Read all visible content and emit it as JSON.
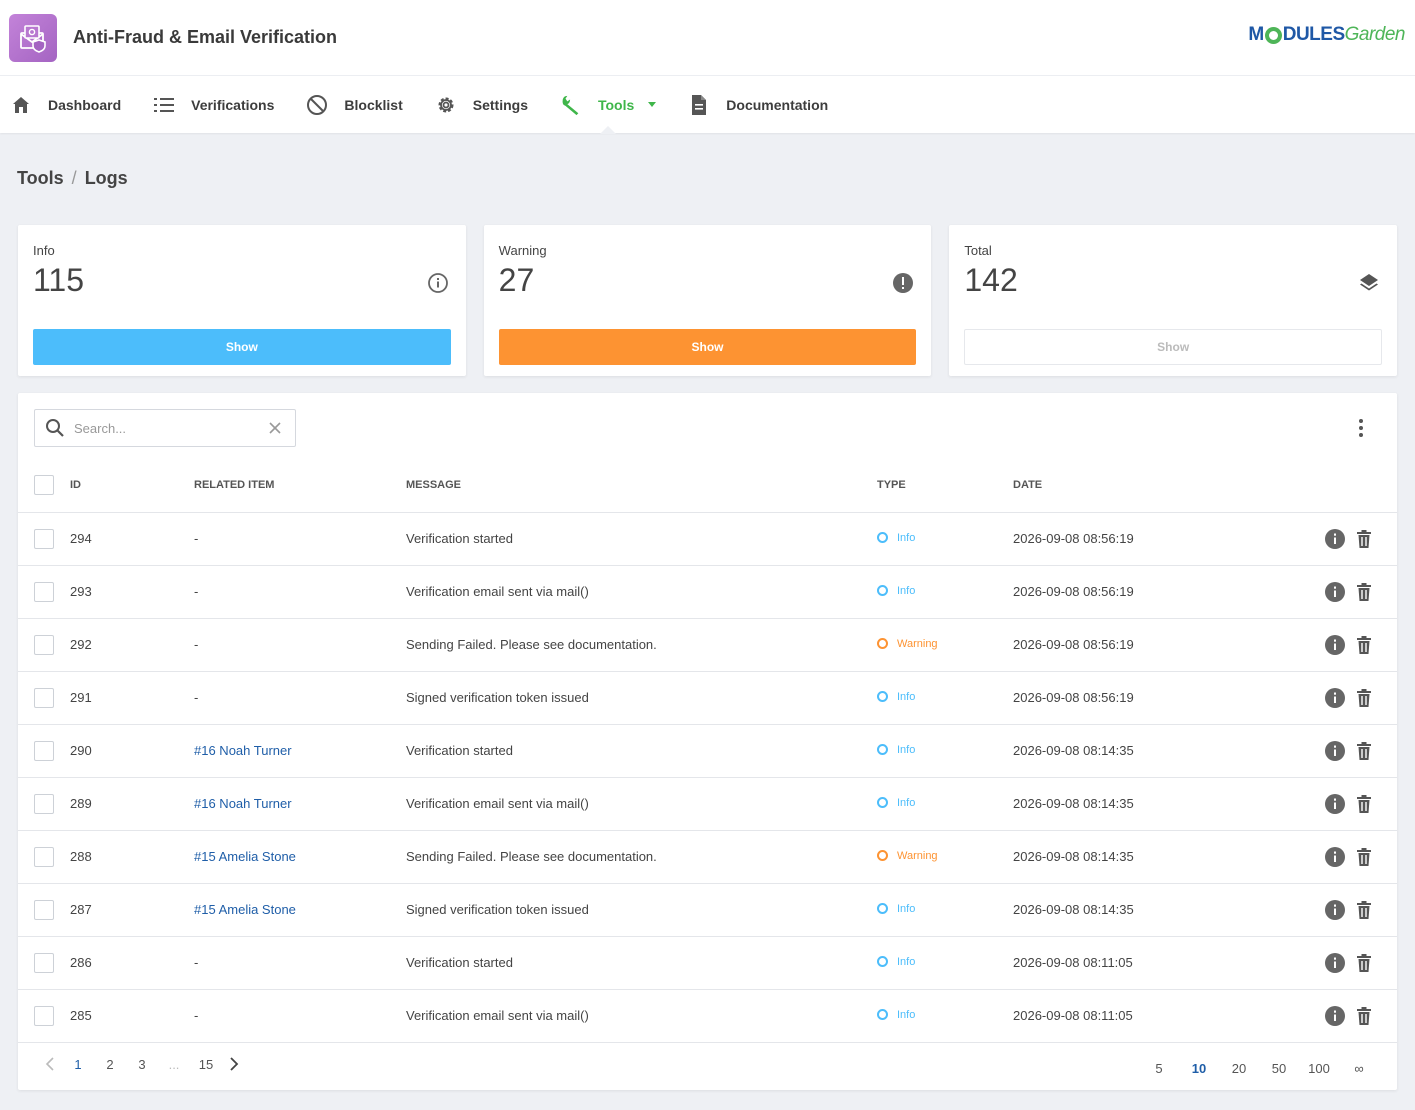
{
  "app": {
    "title": "Anti-Fraud & Email Verification",
    "brand_part1": "M",
    "brand_part2": "DULES",
    "brand_part3": "Garden"
  },
  "nav": {
    "items": [
      {
        "label": "Dashboard",
        "icon": "home-icon"
      },
      {
        "label": "Verifications",
        "icon": "list-icon"
      },
      {
        "label": "Blocklist",
        "icon": "block-icon"
      },
      {
        "label": "Settings",
        "icon": "gear-icon"
      },
      {
        "label": "Tools",
        "icon": "wrench-icon",
        "active": true
      },
      {
        "label": "Documentation",
        "icon": "document-icon"
      }
    ]
  },
  "breadcrumb": {
    "section": "Tools",
    "separator": "/",
    "page": "Logs"
  },
  "cards": [
    {
      "label": "Info",
      "value": "115",
      "button": "Show",
      "icon": "info-icon",
      "color": "#4cbdfb"
    },
    {
      "label": "Warning",
      "value": "27",
      "button": "Show",
      "icon": "warning-icon",
      "color": "#fd9332"
    },
    {
      "label": "Total",
      "value": "142",
      "button": "Show",
      "icon": "layers-icon"
    }
  ],
  "search": {
    "placeholder": "Search...",
    "value": ""
  },
  "table": {
    "headers": {
      "id": "ID",
      "related": "Related Item",
      "message": "Message",
      "type": "Type",
      "date": "Date"
    },
    "rows": [
      {
        "id": "294",
        "related": "-",
        "message": "Verification started",
        "type": "Info",
        "date": "2026-09-08 08:56:19"
      },
      {
        "id": "293",
        "related": "-",
        "message": "Verification email sent via mail()",
        "type": "Info",
        "date": "2026-09-08 08:56:19"
      },
      {
        "id": "292",
        "related": "-",
        "message": "Sending Failed. Please see documentation.",
        "type": "Warning",
        "date": "2026-09-08 08:56:19"
      },
      {
        "id": "291",
        "related": "-",
        "message": "Signed verification token issued",
        "type": "Info",
        "date": "2026-09-08 08:56:19"
      },
      {
        "id": "290",
        "related": "#16 Noah Turner",
        "message": "Verification started",
        "type": "Info",
        "date": "2026-09-08 08:14:35"
      },
      {
        "id": "289",
        "related": "#16 Noah Turner",
        "message": "Verification email sent via mail()",
        "type": "Info",
        "date": "2026-09-08 08:14:35"
      },
      {
        "id": "288",
        "related": "#15 Amelia Stone",
        "message": "Sending Failed. Please see documentation.",
        "type": "Warning",
        "date": "2026-09-08 08:14:35"
      },
      {
        "id": "287",
        "related": "#15 Amelia Stone",
        "message": "Signed verification token issued",
        "type": "Info",
        "date": "2026-09-08 08:14:35"
      },
      {
        "id": "286",
        "related": "-",
        "message": "Verification started",
        "type": "Info",
        "date": "2026-09-08 08:11:05"
      },
      {
        "id": "285",
        "related": "-",
        "message": "Verification email sent via mail()",
        "type": "Info",
        "date": "2026-09-08 08:11:05"
      }
    ]
  },
  "pagination": {
    "pages": [
      "1",
      "2",
      "3"
    ],
    "ellipsis": "...",
    "last": "15",
    "current": "1"
  },
  "per_page": {
    "options": [
      "5",
      "10",
      "20",
      "50",
      "100",
      "∞"
    ],
    "current": "10"
  },
  "colors": {
    "accent_green": "#3fb64a",
    "info": "#4cbdfb",
    "warning": "#fd9332",
    "link": "#1f5ea8"
  }
}
